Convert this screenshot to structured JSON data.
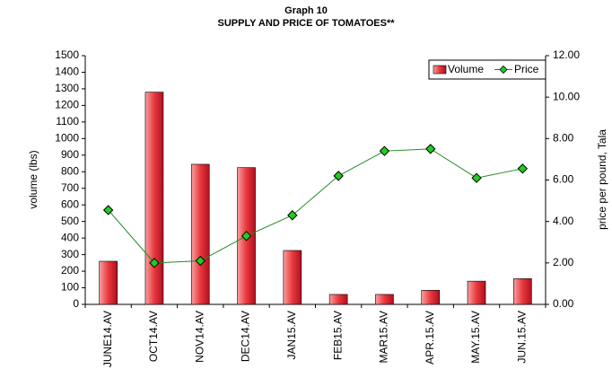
{
  "chart_data": {
    "type": "bar-line",
    "title": "Graph 10",
    "subtitle": "SUPPLY AND PRICE OF TOMATOES**",
    "y_label": "volume (lbs)",
    "y2_label": "price per pound, Tala",
    "categories": [
      "JUNE14.AV",
      "OCT14.AV",
      "NOV14.AV",
      "DEC14.AV",
      "JAN15.AV",
      "FEB15.AV",
      "MAR15.AV",
      "APR.15.AV",
      "MAY.15.AV",
      "JUN.15.AV"
    ],
    "series": [
      {
        "name": "Volume",
        "type": "bar",
        "color": "#e8383d",
        "values": [
          260,
          1280,
          845,
          825,
          325,
          60,
          60,
          85,
          140,
          155
        ]
      },
      {
        "name": "Price",
        "type": "line",
        "axis": "y2",
        "color": "#1f8a1f",
        "marker_color": "#22cc22",
        "values": [
          4.55,
          2.0,
          2.1,
          3.3,
          4.3,
          6.2,
          7.4,
          7.5,
          6.1,
          6.55
        ]
      }
    ],
    "ylim": [
      0,
      1500
    ],
    "yticks": [
      0,
      100,
      200,
      300,
      400,
      500,
      600,
      700,
      800,
      900,
      1000,
      1100,
      1200,
      1300,
      1400,
      1500
    ],
    "y2lim": [
      0,
      12
    ],
    "y2ticks": [
      {
        "value": 0,
        "label": "0.00"
      },
      {
        "value": 2,
        "label": "2.00"
      },
      {
        "value": 4,
        "label": "4.00"
      },
      {
        "value": 6,
        "label": "6.00"
      },
      {
        "value": 8,
        "label": "8.00"
      },
      {
        "value": 10,
        "label": "10.00"
      },
      {
        "value": 12,
        "label": "12.00"
      }
    ],
    "legend": "top-right"
  }
}
